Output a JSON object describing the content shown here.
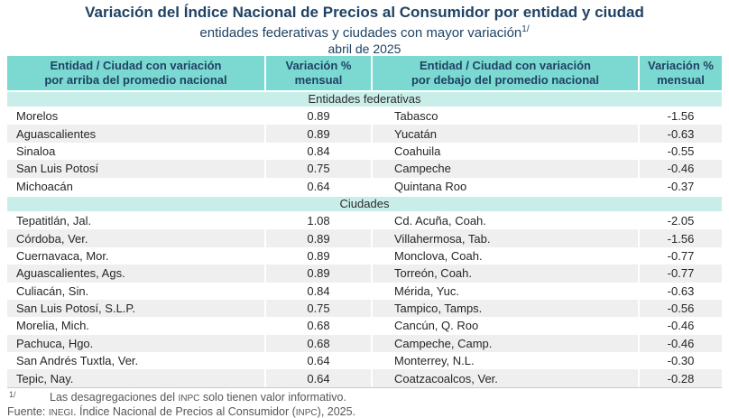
{
  "chart_data": {
    "type": "table",
    "title": "Variación del Índice Nacional de Precios al Consumidor por entidad y ciudad",
    "subtitle": "entidades federativas y ciudades con mayor variación",
    "subtitle_footnote_marker": "1/",
    "date": "abril de 2025",
    "columns": [
      {
        "label": "Entidad / Ciudad con variación\npor arriba del promedio nacional"
      },
      {
        "label": "Variación %\nmensual"
      },
      {
        "label": "Entidad / Ciudad con variación\npor debajo del promedio nacional"
      },
      {
        "label": "Variación %\nmensual"
      }
    ],
    "sections": [
      {
        "label": "Entidades federativas",
        "rows": [
          {
            "left": "Morelos",
            "left_value": "0.89",
            "right": "Tabasco",
            "right_value": "-1.56"
          },
          {
            "left": "Aguascalientes",
            "left_value": "0.89",
            "right": "Yucatán",
            "right_value": "-0.63"
          },
          {
            "left": "Sinaloa",
            "left_value": "0.84",
            "right": "Coahuila",
            "right_value": "-0.55"
          },
          {
            "left": "San Luis Potosí",
            "left_value": "0.75",
            "right": "Campeche",
            "right_value": "-0.46"
          },
          {
            "left": "Michoacán",
            "left_value": "0.64",
            "right": "Quintana Roo",
            "right_value": "-0.37"
          }
        ]
      },
      {
        "label": "Ciudades",
        "rows": [
          {
            "left": "Tepatitlán, Jal.",
            "left_value": "1.08",
            "right": "Cd. Acuña, Coah.",
            "right_value": "-2.05"
          },
          {
            "left": "Córdoba, Ver.",
            "left_value": "0.89",
            "right": "Villahermosa, Tab.",
            "right_value": "-1.56"
          },
          {
            "left": "Cuernavaca, Mor.",
            "left_value": "0.89",
            "right": "Monclova, Coah.",
            "right_value": "-0.77"
          },
          {
            "left": "Aguascalientes, Ags.",
            "left_value": "0.89",
            "right": "Torreón, Coah.",
            "right_value": "-0.77"
          },
          {
            "left": "Culiacán, Sin.",
            "left_value": "0.84",
            "right": "Mérida, Yuc.",
            "right_value": "-0.63"
          },
          {
            "left": "San Luis Potosí, S.L.P.",
            "left_value": "0.75",
            "right": "Tampico, Tamps.",
            "right_value": "-0.56"
          },
          {
            "left": "Morelia, Mich.",
            "left_value": "0.68",
            "right": "Cancún, Q. Roo",
            "right_value": "-0.46"
          },
          {
            "left": "Pachuca, Hgo.",
            "left_value": "0.68",
            "right": "Campeche, Camp.",
            "right_value": "-0.46"
          },
          {
            "left": "San Andrés Tuxtla, Ver.",
            "left_value": "0.64",
            "right": "Monterrey, N.L.",
            "right_value": "-0.30"
          },
          {
            "left": "Tepic, Nay.",
            "left_value": "0.64",
            "right": "Coatzacoalcos, Ver.",
            "right_value": "-0.28"
          }
        ]
      }
    ],
    "layout": {
      "striped_rows": true,
      "header_color": "#7BD9D1",
      "section_color": "#C9EEE9",
      "alt_row_color": "#EFEFEF",
      "title_color": "#1E4264"
    }
  },
  "footnotes": {
    "marker": "1/",
    "note": {
      "pre": "Las desagregaciones del ",
      "acronym": "INPC",
      "post": " solo tienen valor informativo."
    },
    "source": {
      "label": "Fuente: ",
      "org": "INEGI",
      "mid": ". Índice Nacional de Precios al Consumidor (",
      "acronym": "INPC",
      "post": "), 2025."
    }
  }
}
